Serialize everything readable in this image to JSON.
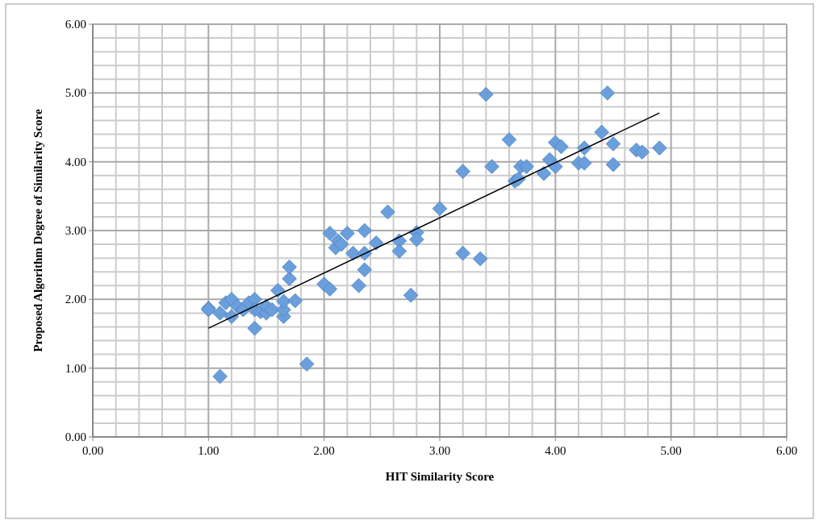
{
  "chart_data": {
    "type": "scatter",
    "xlabel": "HIT Similarity Score",
    "ylabel": "Proposed Algorithm Degree of Similarity Score",
    "xlim": [
      0,
      6
    ],
    "ylim": [
      0,
      6
    ],
    "xticks": [
      {
        "value": 0,
        "label": "0.00"
      },
      {
        "value": 1,
        "label": "1.00"
      },
      {
        "value": 2,
        "label": "2.00"
      },
      {
        "value": 3,
        "label": "3.00"
      },
      {
        "value": 4,
        "label": "4.00"
      },
      {
        "value": 5,
        "label": "5.00"
      },
      {
        "value": 6,
        "label": "6.00"
      }
    ],
    "yticks": [
      {
        "value": 0,
        "label": "0.00"
      },
      {
        "value": 1,
        "label": "1.00"
      },
      {
        "value": 2,
        "label": "2.00"
      },
      {
        "value": 3,
        "label": "3.00"
      },
      {
        "value": 4,
        "label": "4.00"
      },
      {
        "value": 5,
        "label": "5.00"
      },
      {
        "value": 6,
        "label": "6.00"
      }
    ],
    "grid": true,
    "series": [
      {
        "marker": "diamond",
        "color": "#6a9fdc",
        "x": [
          1.0,
          1.0,
          1.1,
          1.1,
          1.15,
          1.2,
          1.2,
          1.25,
          1.3,
          1.35,
          1.4,
          1.4,
          1.4,
          1.45,
          1.5,
          1.5,
          1.55,
          1.6,
          1.65,
          1.65,
          1.65,
          1.7,
          1.7,
          1.75,
          1.85,
          2.0,
          2.05,
          2.05,
          2.1,
          2.12,
          2.15,
          2.2,
          2.25,
          2.3,
          2.35,
          2.35,
          2.35,
          2.45,
          2.55,
          2.65,
          2.65,
          2.75,
          2.8,
          2.8,
          3.0,
          3.2,
          3.2,
          3.35,
          3.4,
          3.45,
          3.6,
          3.65,
          3.68,
          3.7,
          3.75,
          3.9,
          3.95,
          4.0,
          4.0,
          4.05,
          4.2,
          4.25,
          4.25,
          4.4,
          4.45,
          4.5,
          4.5,
          4.7,
          4.75,
          4.9
        ],
        "values": [
          1.87,
          1.85,
          1.8,
          0.88,
          1.95,
          2.0,
          1.75,
          1.9,
          1.85,
          1.95,
          2.0,
          1.85,
          1.58,
          1.82,
          1.8,
          1.9,
          1.85,
          2.13,
          1.75,
          1.85,
          1.97,
          2.3,
          2.47,
          1.98,
          1.06,
          2.22,
          2.15,
          2.96,
          2.75,
          2.85,
          2.8,
          2.96,
          2.67,
          2.2,
          2.43,
          2.67,
          3.0,
          2.82,
          3.27,
          2.85,
          2.7,
          2.06,
          2.97,
          2.87,
          3.32,
          3.86,
          2.67,
          2.59,
          4.98,
          3.93,
          4.32,
          3.72,
          3.75,
          3.93,
          3.93,
          3.83,
          4.03,
          4.28,
          3.93,
          4.22,
          3.98,
          4.2,
          3.98,
          4.43,
          5.0,
          4.26,
          3.96,
          4.17,
          4.14,
          4.2
        ]
      },
      {
        "type": "line",
        "color": "#000000",
        "x": [
          1.0,
          4.9
        ],
        "values": [
          1.58,
          4.71
        ]
      }
    ]
  }
}
